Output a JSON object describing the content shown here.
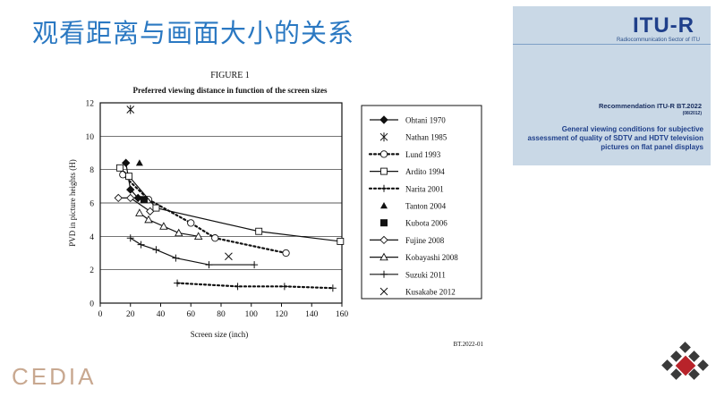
{
  "slide": {
    "title": "观看距离与画面大小的关系",
    "footer_logo": "CEDIA"
  },
  "itu_card": {
    "logo": "ITU-R",
    "sector": "Radiocommunication Sector of ITU",
    "recommendation": "Recommendation ITU-R BT.2022",
    "date": "(08/2012)",
    "description": "General viewing conditions for subjective assessment of quality of SDTV and HDTV television pictures on flat panel displays"
  },
  "figure": {
    "number": "FIGURE 1",
    "caption": "Preferred viewing distance in function of the screen sizes",
    "source": "BT.2022-01"
  },
  "chart_data": {
    "type": "line",
    "title": "Preferred viewing distance in function of the screen sizes",
    "xlabel": "Screen size (inch)",
    "ylabel": "PVD in picture heights (H)",
    "xlim": [
      0,
      160
    ],
    "ylim": [
      0,
      12
    ],
    "xticks": [
      0,
      20,
      40,
      60,
      80,
      100,
      120,
      140,
      160
    ],
    "yticks": [
      0,
      2,
      4,
      6,
      8,
      10,
      12
    ],
    "grid": "horizontal",
    "legend_position": "right",
    "series": [
      {
        "name": "Ohtani 1970",
        "marker": "filled-diamond",
        "line": "solid",
        "x": [
          17,
          20,
          25
        ],
        "y": [
          8.4,
          6.8,
          6.3
        ]
      },
      {
        "name": "Nathan 1985",
        "marker": "asterisk",
        "line": "none",
        "x": [
          20
        ],
        "y": [
          11.6
        ]
      },
      {
        "name": "Lund 1993",
        "marker": "open-circle",
        "line": "dotted",
        "x": [
          15,
          32,
          60,
          76,
          123
        ],
        "y": [
          7.7,
          6.2,
          4.8,
          3.9,
          3.0
        ]
      },
      {
        "name": "Ardito 1994",
        "marker": "open-square",
        "line": "solid",
        "x": [
          13,
          19,
          37,
          105,
          159
        ],
        "y": [
          8.1,
          7.6,
          5.7,
          4.3,
          3.7
        ]
      },
      {
        "name": "Narita 2001",
        "marker": "plus",
        "line": "dotted",
        "x": [
          51,
          91,
          122,
          154
        ],
        "y": [
          1.2,
          1.0,
          1.0,
          0.9
        ]
      },
      {
        "name": "Tanton 2004",
        "marker": "filled-triangle",
        "line": "none",
        "x": [
          26
        ],
        "y": [
          8.4
        ]
      },
      {
        "name": "Kubota 2006",
        "marker": "filled-square",
        "line": "none",
        "x": [
          29
        ],
        "y": [
          6.2
        ]
      },
      {
        "name": "Fujine 2008",
        "marker": "open-diamond",
        "line": "solid",
        "x": [
          12,
          20,
          33
        ],
        "y": [
          6.3,
          6.3,
          5.5
        ]
      },
      {
        "name": "Kobayashi 2008",
        "marker": "open-triangle",
        "line": "solid",
        "x": [
          26,
          32,
          42,
          52,
          65
        ],
        "y": [
          5.4,
          5.0,
          4.6,
          4.2,
          4.0
        ]
      },
      {
        "name": "Suzuki 2011",
        "marker": "plus",
        "line": "solid",
        "x": [
          20,
          27,
          37,
          50,
          72,
          102
        ],
        "y": [
          3.9,
          3.5,
          3.2,
          2.7,
          2.3,
          2.3
        ]
      },
      {
        "name": "Kusakabe 2012",
        "marker": "x",
        "line": "none",
        "x": [
          85
        ],
        "y": [
          2.8
        ]
      }
    ]
  }
}
